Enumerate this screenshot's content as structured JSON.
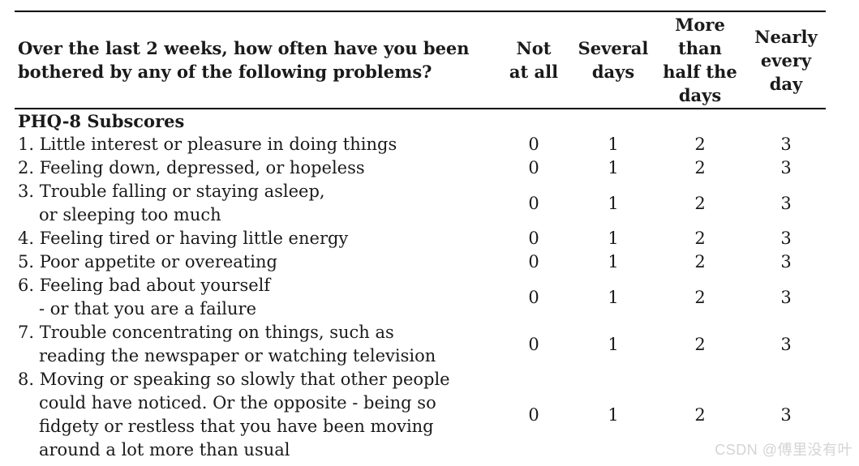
{
  "table": {
    "question_header": "Over the last 2 weeks, how often have you been\nbothered by any of the following problems?",
    "columns": [
      "Not\nat all",
      "Several\ndays",
      "More\nthan\nhalf the\ndays",
      "Nearly\nevery\nday"
    ],
    "section_header": "PHQ-8 Subscores",
    "rows": [
      {
        "question": "1. Little interest or pleasure in doing things",
        "values": [
          "0",
          "1",
          "2",
          "3"
        ]
      },
      {
        "question": "2. Feeling down, depressed, or hopeless",
        "values": [
          "0",
          "1",
          "2",
          "3"
        ]
      },
      {
        "question": "3. Trouble falling or staying asleep,\nor sleeping too much",
        "values": [
          "0",
          "1",
          "2",
          "3"
        ]
      },
      {
        "question": "4. Feeling tired or having little energy",
        "values": [
          "0",
          "1",
          "2",
          "3"
        ]
      },
      {
        "question": "5. Poor appetite or overeating",
        "values": [
          "0",
          "1",
          "2",
          "3"
        ]
      },
      {
        "question": "6. Feeling bad about yourself\n- or that you are a failure",
        "values": [
          "0",
          "1",
          "2",
          "3"
        ]
      },
      {
        "question": "7. Trouble concentrating on things, such as\nreading the newspaper or watching television",
        "values": [
          "0",
          "1",
          "2",
          "3"
        ]
      },
      {
        "question": "8. Moving or speaking so slowly that other people\ncould have noticed. Or the opposite - being so\nfidgety or restless that you have been moving\naround a lot more than usual",
        "values": [
          "0",
          "1",
          "2",
          "3"
        ]
      }
    ]
  },
  "watermark": "CSDN @傅里没有叶",
  "colors": {
    "background": "#ffffff",
    "text": "#1a1a1a",
    "rule": "#000000",
    "watermark": "#d4d4d4"
  }
}
